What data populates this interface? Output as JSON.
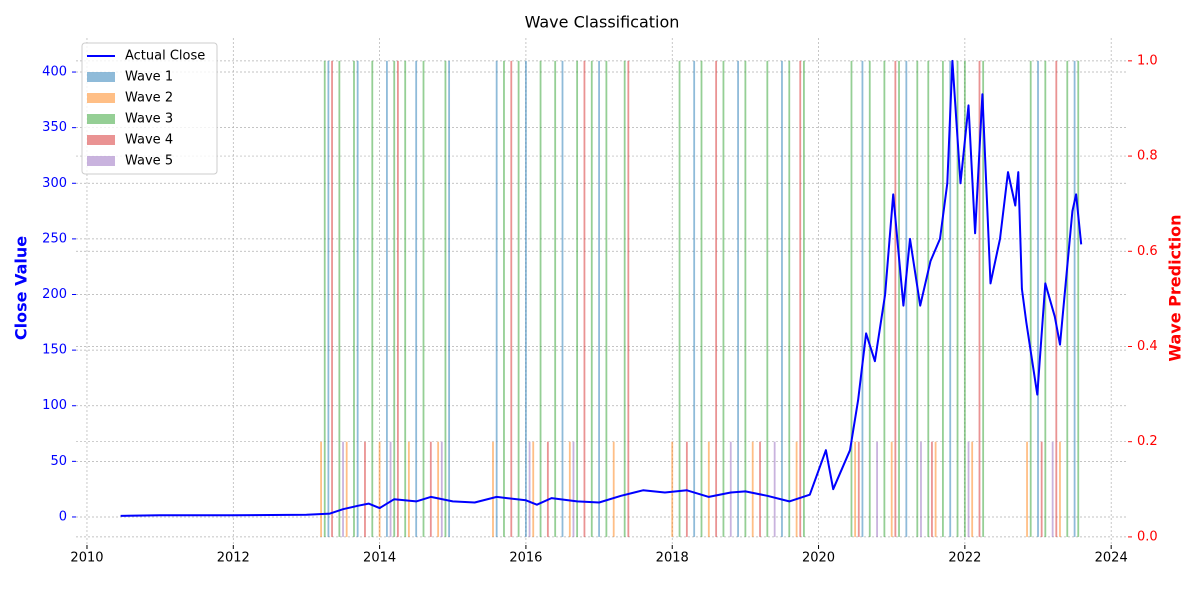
{
  "chart_data": {
    "type": "line",
    "title": "Wave Classification",
    "y_label": "Close Value",
    "y2_label": "Wave Prediction",
    "grid": true,
    "legend": "upper left",
    "xlim": [
      2009.85,
      2024.23
    ],
    "xticks": [
      2010,
      2012,
      2014,
      2016,
      2018,
      2020,
      2022,
      2024
    ],
    "ylim": [
      -25.2,
      430.6
    ],
    "yticks": [
      0,
      50,
      100,
      150,
      200,
      250,
      300,
      350,
      400
    ],
    "y2lim": [
      -0.017,
      1.048
    ],
    "y2ticks": [
      {
        "value": 0,
        "label": "0.0"
      },
      0.2,
      0.4,
      0.6,
      0.8,
      {
        "value": 1,
        "label": "1.0"
      }
    ],
    "series": [
      {
        "name": "Actual Close",
        "type": "line",
        "color": "#0000ff",
        "x": [
          2010.46,
          2011.0,
          2012.0,
          2013.0,
          2013.32,
          2013.5,
          2013.7,
          2013.85,
          2014.0,
          2014.2,
          2014.5,
          2014.7,
          2015.0,
          2015.3,
          2015.6,
          2016.0,
          2016.15,
          2016.35,
          2016.7,
          2017.0,
          2017.3,
          2017.6,
          2017.9,
          2018.2,
          2018.5,
          2018.8,
          2019.0,
          2019.3,
          2019.6,
          2019.88,
          2020.1,
          2020.2,
          2020.43,
          2020.54,
          2020.65,
          2020.77,
          2020.91,
          2021.02,
          2021.16,
          2021.25,
          2021.39,
          2021.53,
          2021.66,
          2021.76,
          2021.83,
          2021.94,
          2022.05,
          2022.14,
          2022.24,
          2022.35,
          2022.48,
          2022.59,
          2022.69,
          2022.73,
          2022.78,
          2022.84,
          2022.99,
          2023.1,
          2023.23,
          2023.3,
          2023.47,
          2023.52,
          2023.59
        ],
        "values": [
          1,
          1.5,
          1.5,
          2,
          3,
          7,
          10,
          12,
          8,
          16,
          14,
          18,
          14,
          13,
          18,
          15,
          11,
          17,
          14,
          13,
          19,
          24,
          22,
          24,
          18,
          22,
          23,
          19,
          14,
          20,
          60,
          25,
          60,
          105,
          165,
          140,
          200,
          290,
          190,
          250,
          190,
          230,
          250,
          300,
          410,
          300,
          370,
          255,
          380,
          210,
          250,
          310,
          280,
          310,
          205,
          175,
          110,
          210,
          180,
          155,
          275,
          290,
          245
        ]
      },
      {
        "name": "Wave 1",
        "type": "bar",
        "axis": "y2",
        "color": "#1f77b4",
        "x": [
          2013.3,
          2013.7,
          2014.1,
          2014.5,
          2014.95,
          2015.6,
          2016.0,
          2016.5,
          2017.0,
          2018.3,
          2018.9,
          2019.5,
          2020.6,
          2021.2,
          2021.8,
          2023.0,
          2023.5
        ],
        "values": [
          1,
          1,
          1,
          1,
          1,
          1,
          1,
          1,
          1,
          1,
          1,
          1,
          1,
          1,
          1,
          1,
          1
        ]
      },
      {
        "name": "Wave 2",
        "type": "bar",
        "axis": "y2",
        "color": "#ff7f0e",
        "x": [
          2013.2,
          2013.55,
          2014.0,
          2014.4,
          2014.8,
          2015.55,
          2016.1,
          2016.6,
          2017.2,
          2018.0,
          2018.5,
          2019.1,
          2019.7,
          2020.5,
          2021.0,
          2021.6,
          2022.1,
          2022.85,
          2023.3
        ],
        "values": [
          0.2,
          0.2,
          0.2,
          0.2,
          0.2,
          0.2,
          0.2,
          0.2,
          0.2,
          0.2,
          0.2,
          0.2,
          0.2,
          0.2,
          0.2,
          0.2,
          0.2,
          0.2,
          0.2
        ]
      },
      {
        "name": "Wave 3",
        "type": "bar",
        "axis": "y2",
        "color": "#2ca02c",
        "x": [
          2013.25,
          2013.45,
          2013.65,
          2013.9,
          2014.2,
          2014.35,
          2014.6,
          2014.9,
          2015.7,
          2015.9,
          2016.2,
          2016.4,
          2016.7,
          2016.9,
          2017.1,
          2017.35,
          2018.1,
          2018.4,
          2018.7,
          2019.0,
          2019.3,
          2019.6,
          2019.8,
          2020.45,
          2020.7,
          2020.9,
          2021.1,
          2021.35,
          2021.5,
          2021.7,
          2021.9,
          2022.0,
          2022.25,
          2022.9,
          2023.1,
          2023.4,
          2023.55
        ],
        "values": [
          1,
          1,
          1,
          1,
          1,
          1,
          1,
          1,
          1,
          1,
          1,
          1,
          1,
          1,
          1,
          1,
          1,
          1,
          1,
          1,
          1,
          1,
          1,
          1,
          1,
          1,
          1,
          1,
          1,
          1,
          1,
          1,
          1,
          1,
          1,
          1,
          1
        ]
      },
      {
        "name": "Wave 4",
        "type": "bar",
        "axis": "y2",
        "color": "#d62728",
        "x": [
          2013.35,
          2013.8,
          2014.25,
          2014.7,
          2015.8,
          2016.3,
          2016.8,
          2017.4,
          2018.2,
          2018.6,
          2019.2,
          2019.75,
          2020.55,
          2021.05,
          2021.55,
          2022.2,
          2023.05,
          2023.25
        ],
        "values": [
          1,
          0.2,
          1,
          0.2,
          1,
          0.2,
          1,
          1,
          0.2,
          1,
          0.2,
          1,
          0.2,
          1,
          0.2,
          1,
          0.2,
          1
        ]
      },
      {
        "name": "Wave 5",
        "type": "bar",
        "axis": "y2",
        "color": "#9467bd",
        "x": [
          2013.5,
          2014.15,
          2014.85,
          2016.05,
          2016.65,
          2018.8,
          2019.4,
          2020.8,
          2021.4,
          2022.05,
          2023.2
        ],
        "values": [
          0.2,
          0.2,
          0.2,
          0.2,
          0.2,
          0.2,
          0.2,
          0.2,
          0.2,
          0.2,
          0.2
        ]
      }
    ]
  }
}
